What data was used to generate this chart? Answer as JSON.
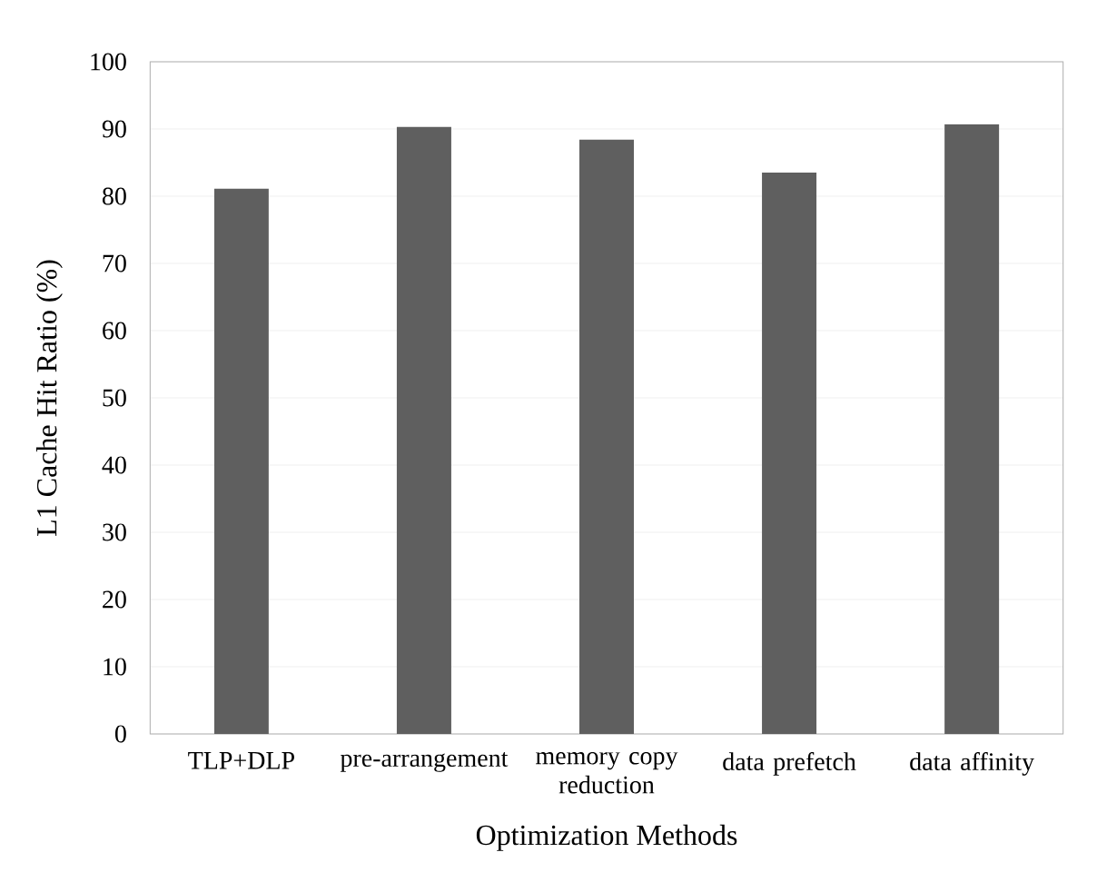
{
  "chart_data": {
    "type": "bar",
    "xlabel": "Optimization Methods",
    "ylabel": "L1 Cache Hit Ratio (%)",
    "categories": [
      "TLP+DLP",
      "pre-arrangement",
      "memory copy reduction",
      "data prefetch",
      "data affinity"
    ],
    "values": [
      81.1,
      90.3,
      88.4,
      83.5,
      90.7
    ],
    "color": "#5f5f5f",
    "ylim": [
      0,
      100
    ],
    "yticks": [
      0,
      10,
      20,
      30,
      40,
      50,
      60,
      70,
      80,
      90,
      100
    ],
    "grid": "y"
  }
}
